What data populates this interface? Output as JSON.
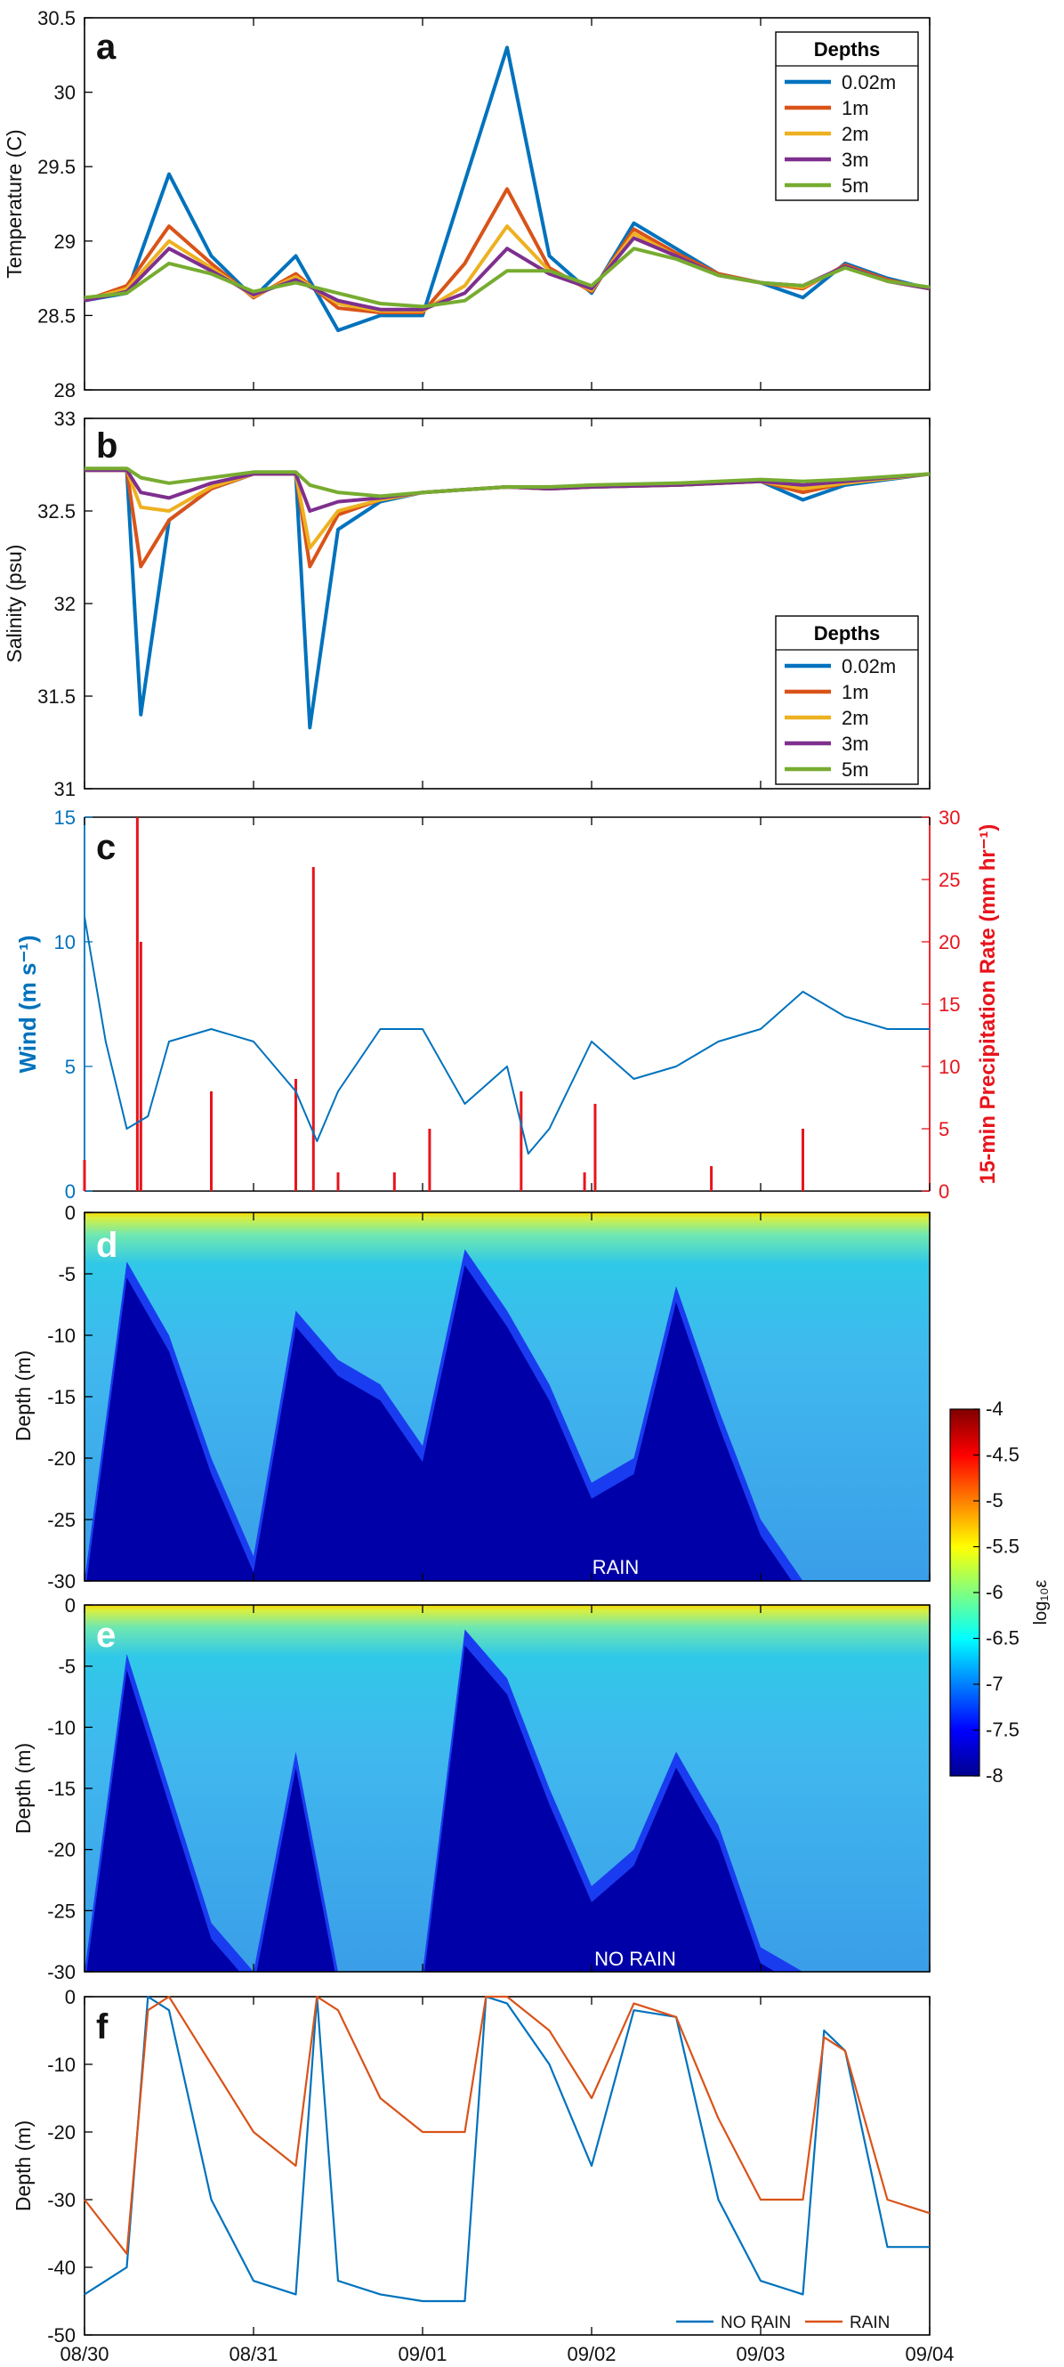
{
  "panels": {
    "a": {
      "letter": "a",
      "ylabel": "Temperature (C)",
      "yticks": [
        "30.5",
        "30",
        "29.5",
        "29",
        "28.5",
        "28"
      ]
    },
    "b": {
      "letter": "b",
      "ylabel": "Salinity (psu)",
      "yticks": [
        "33",
        "32.5",
        "32",
        "31.5",
        "31"
      ]
    },
    "c": {
      "letter": "c",
      "ylabel_left": "Wind (m s⁻¹)",
      "ylabel_right": "15-min Precipitation Rate (mm hr⁻¹)",
      "yticks_left": [
        "15",
        "10",
        "5",
        "0"
      ],
      "yticks_right": [
        "30",
        "25",
        "20",
        "15",
        "10",
        "5",
        "0"
      ]
    },
    "d": {
      "letter": "d",
      "ylabel": "Depth (m)",
      "annotation": "RAIN",
      "yticks": [
        "0",
        "-5",
        "-10",
        "-15",
        "-20",
        "-25",
        "-30"
      ]
    },
    "e": {
      "letter": "e",
      "ylabel": "Depth (m)",
      "annotation": "NO RAIN",
      "yticks": [
        "0",
        "-5",
        "-10",
        "-15",
        "-20",
        "-25",
        "-30"
      ]
    },
    "f": {
      "letter": "f",
      "ylabel": "Depth (m)",
      "yticks": [
        "0",
        "-10",
        "-20",
        "-30",
        "-40",
        "-50"
      ]
    }
  },
  "xticks": [
    "08/30",
    "08/31",
    "09/01",
    "09/02",
    "09/03",
    "09/04"
  ],
  "legend": {
    "title": "Depths",
    "entries": [
      "0.02m",
      "1m",
      "2m",
      "3m",
      "5m"
    ]
  },
  "legend_f": {
    "entries": [
      "NO RAIN",
      "RAIN"
    ]
  },
  "colorbar": {
    "label": "log₁₀ε",
    "ticks": [
      "-4",
      "-4.5",
      "-5",
      "-5.5",
      "-6",
      "-6.5",
      "-7",
      "-7.5",
      "-8"
    ]
  },
  "colors": {
    "d002": "#0072BD",
    "d1": "#D95319",
    "d2": "#EDB120",
    "d3": "#7E2F8E",
    "d5": "#77AC30",
    "wind": "#0072BD",
    "precip": "#E8141C",
    "axis": "#000000"
  },
  "chart_data": [
    {
      "type": "line",
      "panel": "a",
      "xlabel": "",
      "ylabel": "Temperature (C)",
      "ylim": [
        28,
        30.5
      ],
      "legend_title": "Depths",
      "legend_position": "top-right",
      "x": [
        "08/30 00:00",
        "08/30 06:00",
        "08/30 12:00",
        "08/30 18:00",
        "08/31 00:00",
        "08/31 06:00",
        "08/31 12:00",
        "08/31 18:00",
        "09/01 00:00",
        "09/01 06:00",
        "09/01 12:00",
        "09/01 18:00",
        "09/02 00:00",
        "09/02 06:00",
        "09/02 12:00",
        "09/02 18:00",
        "09/03 00:00",
        "09/03 06:00",
        "09/03 12:00",
        "09/03 18:00",
        "09/04 00:00"
      ],
      "series": [
        {
          "name": "0.02m",
          "values": [
            28.6,
            28.65,
            29.45,
            28.9,
            28.62,
            28.9,
            28.4,
            28.5,
            28.5,
            29.4,
            30.3,
            28.9,
            28.65,
            29.12,
            28.95,
            28.78,
            28.72,
            28.62,
            28.85,
            28.75,
            28.68
          ]
        },
        {
          "name": "1m",
          "values": [
            28.6,
            28.7,
            29.1,
            28.85,
            28.62,
            28.78,
            28.55,
            28.52,
            28.52,
            28.85,
            29.35,
            28.82,
            28.66,
            29.08,
            28.92,
            28.78,
            28.72,
            28.68,
            28.84,
            28.74,
            28.68
          ]
        },
        {
          "name": "2m",
          "values": [
            28.6,
            28.68,
            29.0,
            28.82,
            28.63,
            28.76,
            28.58,
            28.53,
            28.53,
            28.7,
            29.1,
            28.8,
            28.67,
            29.05,
            28.9,
            28.77,
            28.72,
            28.69,
            28.83,
            28.73,
            28.68
          ]
        },
        {
          "name": "3m",
          "values": [
            28.6,
            28.66,
            28.95,
            28.8,
            28.64,
            28.74,
            28.6,
            28.54,
            28.54,
            28.65,
            28.95,
            28.78,
            28.68,
            29.02,
            28.9,
            28.77,
            28.72,
            28.7,
            28.83,
            28.73,
            28.68
          ]
        },
        {
          "name": "5m",
          "values": [
            28.62,
            28.65,
            28.85,
            28.78,
            28.66,
            28.72,
            28.65,
            28.58,
            28.56,
            28.6,
            28.8,
            28.8,
            28.7,
            28.95,
            28.88,
            28.77,
            28.72,
            28.7,
            28.82,
            28.73,
            28.69
          ]
        }
      ]
    },
    {
      "type": "line",
      "panel": "b",
      "xlabel": "",
      "ylabel": "Salinity (psu)",
      "ylim": [
        31,
        33
      ],
      "legend_title": "Depths",
      "legend_position": "bottom-right",
      "x": [
        "08/30 00:00",
        "08/30 06:00",
        "08/30 08:00",
        "08/30 12:00",
        "08/30 18:00",
        "08/31 00:00",
        "08/31 06:00",
        "08/31 08:00",
        "08/31 12:00",
        "08/31 18:00",
        "09/01 00:00",
        "09/01 12:00",
        "09/01 18:00",
        "09/02 00:00",
        "09/02 12:00",
        "09/03 00:00",
        "09/03 06:00",
        "09/03 12:00",
        "09/04 00:00"
      ],
      "series": [
        {
          "name": "0.02m",
          "values": [
            32.72,
            32.72,
            31.4,
            32.45,
            32.62,
            32.7,
            32.7,
            31.33,
            32.4,
            32.55,
            32.6,
            32.63,
            32.62,
            32.63,
            32.64,
            32.66,
            32.56,
            32.64,
            32.7
          ]
        },
        {
          "name": "1m",
          "values": [
            32.72,
            32.72,
            32.2,
            32.45,
            32.62,
            32.7,
            32.7,
            32.2,
            32.48,
            32.56,
            32.6,
            32.63,
            32.62,
            32.63,
            32.64,
            32.66,
            32.6,
            32.65,
            32.7
          ]
        },
        {
          "name": "2m",
          "values": [
            32.72,
            32.72,
            32.52,
            32.5,
            32.63,
            32.7,
            32.7,
            32.3,
            32.5,
            32.56,
            32.6,
            32.63,
            32.62,
            32.63,
            32.64,
            32.66,
            32.62,
            32.65,
            32.7
          ]
        },
        {
          "name": "3m",
          "values": [
            32.72,
            32.72,
            32.6,
            32.57,
            32.65,
            32.7,
            32.7,
            32.5,
            32.55,
            32.57,
            32.6,
            32.63,
            32.62,
            32.63,
            32.64,
            32.66,
            32.64,
            32.66,
            32.7
          ]
        },
        {
          "name": "5m",
          "values": [
            32.73,
            32.73,
            32.68,
            32.65,
            32.68,
            32.71,
            32.71,
            32.64,
            32.6,
            32.58,
            32.6,
            32.63,
            32.63,
            32.64,
            32.65,
            32.67,
            32.66,
            32.67,
            32.7
          ]
        }
      ]
    },
    {
      "type": "line",
      "panel": "c",
      "ylabel": "Wind (m s⁻¹)",
      "ylim": [
        0,
        15
      ],
      "x": [
        "08/30 00:00",
        "08/30 03:00",
        "08/30 06:00",
        "08/30 09:00",
        "08/30 12:00",
        "08/30 18:00",
        "08/31 00:00",
        "08/31 06:00",
        "08/31 09:00",
        "08/31 12:00",
        "08/31 18:00",
        "09/01 00:00",
        "09/01 06:00",
        "09/01 12:00",
        "09/01 15:00",
        "09/01 18:00",
        "09/02 00:00",
        "09/02 06:00",
        "09/02 12:00",
        "09/02 18:00",
        "09/03 00:00",
        "09/03 06:00",
        "09/03 12:00",
        "09/03 18:00",
        "09/04 00:00"
      ],
      "series": [
        {
          "name": "Wind",
          "values": [
            11,
            6,
            2.5,
            3,
            6,
            6.5,
            6,
            4,
            2,
            4,
            6.5,
            6.5,
            3.5,
            5,
            1.5,
            2.5,
            6,
            4.5,
            5,
            6,
            6.5,
            8,
            7,
            6.5,
            6.5
          ]
        }
      ]
    },
    {
      "type": "bar",
      "panel": "c",
      "ylabel": "15-min Precipitation Rate (mm hr⁻¹)",
      "ylim": [
        0,
        30
      ],
      "x": [
        "08/30 00:00",
        "08/30 07:30",
        "08/30 08:00",
        "08/30 18:00",
        "08/31 06:00",
        "08/31 08:30",
        "08/31 12:00",
        "08/31 20:00",
        "09/01 01:00",
        "09/01 14:00",
        "09/01 23:00",
        "09/02 00:30",
        "09/02 17:00",
        "09/03 06:00"
      ],
      "values": [
        2.5,
        30,
        20,
        8,
        9,
        26,
        1.5,
        1.5,
        5,
        8,
        1.5,
        7,
        2,
        5
      ]
    },
    {
      "type": "heatmap",
      "panel": "d",
      "annotation": "RAIN",
      "ylabel": "Depth (m)",
      "ylim": [
        -30,
        0
      ],
      "colorbar_label": "log₁₀ε",
      "clim": [
        -8,
        -4
      ],
      "mixing_front_depth": {
        "x": [
          "08/30 00:00",
          "08/30 06:00",
          "08/30 12:00",
          "08/30 18:00",
          "08/31 00:00",
          "08/31 06:00",
          "08/31 12:00",
          "08/31 18:00",
          "09/01 00:00",
          "09/01 06:00",
          "09/01 12:00",
          "09/01 18:00",
          "09/02 00:00",
          "09/02 06:00",
          "09/02 12:00",
          "09/02 18:00",
          "09/03 00:00",
          "09/03 06:00",
          "09/03 12:00",
          "09/03 18:00",
          "09/04 00:00"
        ],
        "values": [
          -30,
          -4,
          -10,
          -20,
          -28,
          -8,
          -12,
          -14,
          -19,
          -3,
          -8,
          -14,
          -22,
          -20,
          -6,
          -16,
          -25,
          -30,
          -30,
          -30,
          -30
        ]
      }
    },
    {
      "type": "heatmap",
      "panel": "e",
      "annotation": "NO RAIN",
      "ylabel": "Depth (m)",
      "ylim": [
        -30,
        0
      ],
      "colorbar_label": "log₁₀ε",
      "clim": [
        -8,
        -4
      ],
      "mixing_front_depth": {
        "x": [
          "08/30 00:00",
          "08/30 06:00",
          "08/30 12:00",
          "08/30 18:00",
          "08/31 00:00",
          "08/31 06:00",
          "08/31 12:00",
          "08/31 18:00",
          "09/01 00:00",
          "09/01 06:00",
          "09/01 12:00",
          "09/01 18:00",
          "09/02 00:00",
          "09/02 06:00",
          "09/02 12:00",
          "09/02 18:00",
          "09/03 00:00",
          "09/03 06:00",
          "09/03 12:00",
          "09/03 18:00",
          "09/04 00:00"
        ],
        "values": [
          -30,
          -4,
          -15,
          -26,
          -30,
          -12,
          -30,
          -30,
          -30,
          -2,
          -6,
          -15,
          -23,
          -20,
          -12,
          -18,
          -28,
          -30,
          -30,
          -30,
          -30
        ]
      }
    },
    {
      "type": "line",
      "panel": "f",
      "ylabel": "Depth (m)",
      "ylim": [
        -50,
        0
      ],
      "legend_position": "bottom-right",
      "x": [
        "08/30 00:00",
        "08/30 06:00",
        "08/30 09:00",
        "08/30 12:00",
        "08/30 18:00",
        "08/31 00:00",
        "08/31 06:00",
        "08/31 09:00",
        "08/31 12:00",
        "08/31 18:00",
        "09/01 00:00",
        "09/01 06:00",
        "09/01 09:00",
        "09/01 12:00",
        "09/01 18:00",
        "09/02 00:00",
        "09/02 06:00",
        "09/02 12:00",
        "09/02 18:00",
        "09/03 00:00",
        "09/03 06:00",
        "09/03 09:00",
        "09/03 12:00",
        "09/03 18:00",
        "09/04 00:00"
      ],
      "series": [
        {
          "name": "NO RAIN",
          "values": [
            -44,
            -40,
            0,
            -2,
            -30,
            -42,
            -44,
            0,
            -42,
            -44,
            -45,
            -45,
            0,
            -1,
            -10,
            -25,
            -2,
            -3,
            -30,
            -42,
            -44,
            -5,
            -8,
            -37,
            -37
          ]
        },
        {
          "name": "RAIN",
          "values": [
            -30,
            -38,
            -2,
            0,
            -10,
            -20,
            -25,
            0,
            -2,
            -15,
            -20,
            -20,
            0,
            0,
            -5,
            -15,
            -1,
            -3,
            -18,
            -30,
            -30,
            -6,
            -8,
            -30,
            -32
          ]
        }
      ]
    }
  ]
}
